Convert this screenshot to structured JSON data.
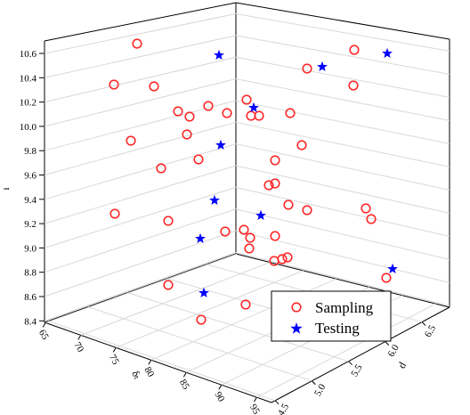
{
  "chart_data": {
    "type": "scatter",
    "title": "",
    "zlabel": "ı",
    "xlabel": "δₜ",
    "ylabel": "d",
    "zlim": [
      8.4,
      10.7
    ],
    "z_ticks": [
      "10.6",
      "10.4",
      "10.2",
      "10.0",
      "9.8",
      "9.6",
      "9.4",
      "9.2",
      "9.0",
      "8.8",
      "8.6",
      "8.4"
    ],
    "x_ticks": [
      "65",
      "70",
      "75",
      "80",
      "85",
      "90",
      "95"
    ],
    "y_ticks": [
      "4.5",
      "5.0",
      "5.5",
      "6.0",
      "6.5"
    ],
    "grid": true,
    "legend_position": "bottom-right",
    "series": [
      {
        "name": "Sampling",
        "marker": "open-circle",
        "color": "#ff2a2a",
        "points": [
          [
            154,
            49
          ],
          [
            128,
            95
          ],
          [
            173,
            97
          ],
          [
            200,
            125
          ],
          [
            213,
            131
          ],
          [
            234,
            119
          ],
          [
            255,
            127
          ],
          [
            210,
            151
          ],
          [
            147,
            158
          ],
          [
            181,
            189
          ],
          [
            223,
            179
          ],
          [
            129,
            240
          ],
          [
            189,
            248
          ],
          [
            253,
            260
          ],
          [
            277,
            112
          ],
          [
            282,
            130
          ],
          [
            291,
            130
          ],
          [
            326,
            127
          ],
          [
            345,
            77
          ],
          [
            398,
            56
          ],
          [
            397,
            96
          ],
          [
            339,
            163
          ],
          [
            309,
            180
          ],
          [
            302,
            208
          ],
          [
            309,
            206
          ],
          [
            324,
            230
          ],
          [
            345,
            236
          ],
          [
            411,
            234
          ],
          [
            417,
            246
          ],
          [
            274,
            258
          ],
          [
            281,
            267
          ],
          [
            280,
            279
          ],
          [
            309,
            265
          ],
          [
            308,
            293
          ],
          [
            317,
            291
          ],
          [
            323,
            289
          ],
          [
            189,
            320
          ],
          [
            226,
            359
          ],
          [
            276,
            342
          ],
          [
            434,
            312
          ]
        ]
      },
      {
        "name": "Testing",
        "marker": "star",
        "color": "#0000ff",
        "points": [
          [
            246,
            62
          ],
          [
            362,
            75
          ],
          [
            435,
            60
          ],
          [
            285,
            121
          ],
          [
            248,
            163
          ],
          [
            241,
            225
          ],
          [
            225,
            268
          ],
          [
            293,
            242
          ],
          [
            229,
            329
          ],
          [
            441,
            302
          ]
        ]
      }
    ]
  },
  "legend": {
    "sampling_label": "Sampling",
    "testing_label": "Testing"
  }
}
